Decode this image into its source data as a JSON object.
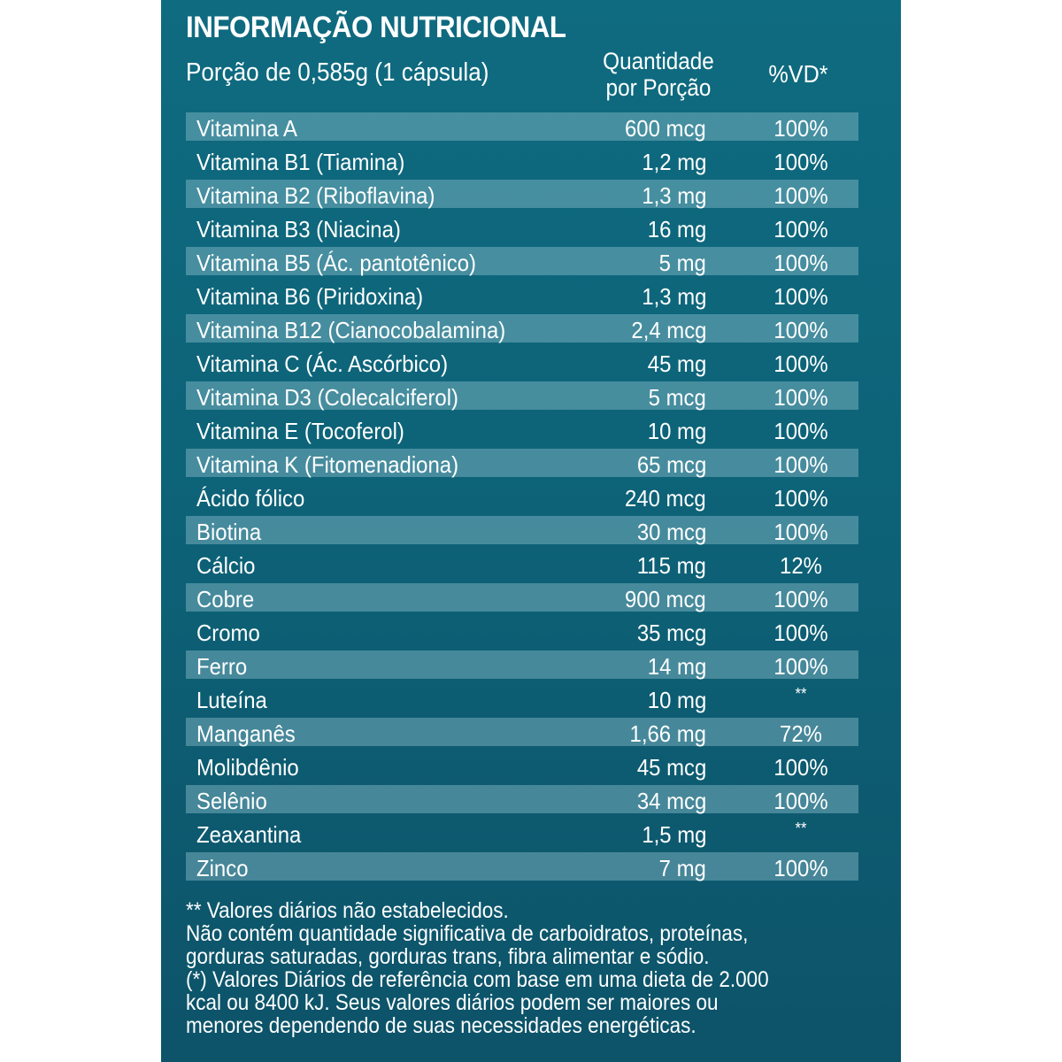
{
  "title": "INFORMAÇÃO NUTRICIONAL",
  "portion": "Porção de 0,585g (1 cápsula)",
  "headers": {
    "quantity_line1": "Quantidade",
    "quantity_line2": "por Porção",
    "daily_value": "%VD*"
  },
  "colors": {
    "panel_top": "#0f6b80",
    "panel_bottom": "#0d5369",
    "band": "#4a8a9a",
    "text": "#ffffff"
  },
  "rows": [
    {
      "name": "Vitamina A",
      "qty": "600 mcg",
      "vd": "100%"
    },
    {
      "name": "Vitamina B1 (Tiamina)",
      "qty": "1,2 mg",
      "vd": "100%"
    },
    {
      "name": "Vitamina B2 (Riboflavina)",
      "qty": "1,3 mg",
      "vd": "100%"
    },
    {
      "name": "Vitamina B3 (Niacina)",
      "qty": "16 mg",
      "vd": "100%"
    },
    {
      "name": "Vitamina B5 (Ác. pantotênico)",
      "qty": "5 mg",
      "vd": "100%"
    },
    {
      "name": "Vitamina B6 (Piridoxina)",
      "qty": "1,3 mg",
      "vd": "100%"
    },
    {
      "name": "Vitamina B12 (Cianocobalamina)",
      "qty": "2,4 mcg",
      "vd": "100%"
    },
    {
      "name": "Vitamina C (Ác. Ascórbico)",
      "qty": "45 mg",
      "vd": "100%"
    },
    {
      "name": "Vitamina D3 (Colecalciferol)",
      "qty": "5 mcg",
      "vd": "100%"
    },
    {
      "name": "Vitamina E (Tocoferol)",
      "qty": "10 mg",
      "vd": "100%"
    },
    {
      "name": "Vitamina K (Fitomenadiona)",
      "qty": "65 mcg",
      "vd": "100%"
    },
    {
      "name": "Ácido fólico",
      "qty": "240 mcg",
      "vd": "100%"
    },
    {
      "name": "Biotina",
      "qty": "30 mcg",
      "vd": "100%"
    },
    {
      "name": "Cálcio",
      "qty": "115 mg",
      "vd": "12%"
    },
    {
      "name": "Cobre",
      "qty": "900 mcg",
      "vd": "100%"
    },
    {
      "name": "Cromo",
      "qty": "35 mcg",
      "vd": "100%"
    },
    {
      "name": "Ferro",
      "qty": "14 mg",
      "vd": "100%"
    },
    {
      "name": "Luteína",
      "qty": "10 mg",
      "vd": "**"
    },
    {
      "name": "Manganês",
      "qty": "1,66 mg",
      "vd": "72%"
    },
    {
      "name": "Molibdênio",
      "qty": "45 mcg",
      "vd": "100%"
    },
    {
      "name": "Selênio",
      "qty": "34 mcg",
      "vd": "100%"
    },
    {
      "name": "Zeaxantina",
      "qty": "1,5 mg",
      "vd": "**"
    },
    {
      "name": "Zinco",
      "qty": "7 mg",
      "vd": "100%"
    }
  ],
  "footnotes": [
    "** Valores  diários  não estabelecidos.",
    "Não contém quantidade significativa de carboidratos, proteínas,",
    "gorduras saturadas, gorduras trans, fibra alimentar e sódio.",
    "(*) Valores Diários de referência com base em uma dieta de 2.000",
    "kcal ou 8400 kJ. Seus valores diários podem ser maiores ou",
    "menores dependendo de suas necessidades energéticas."
  ]
}
